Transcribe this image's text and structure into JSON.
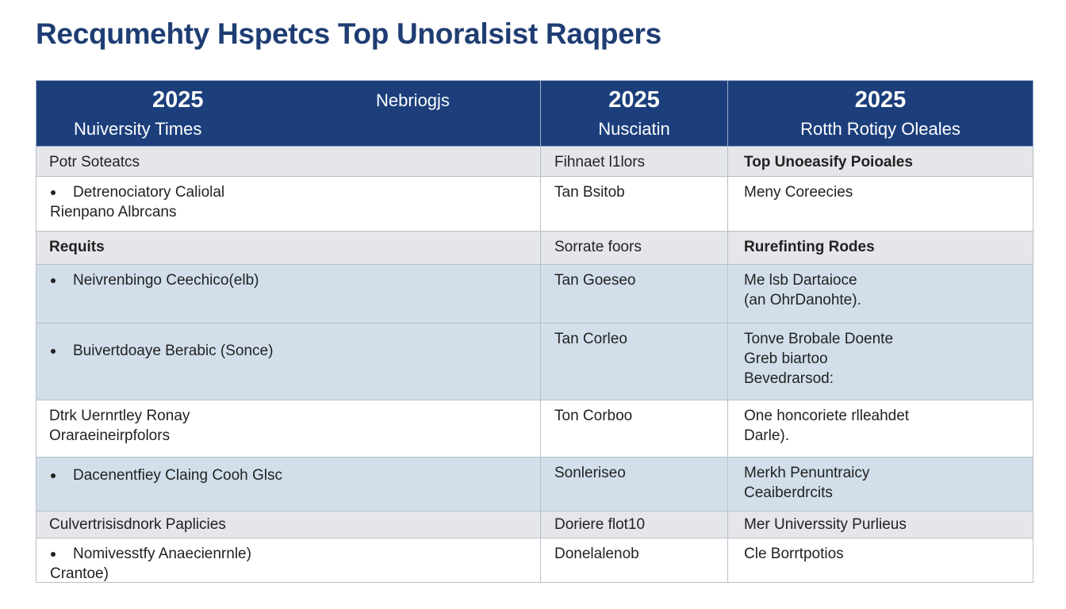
{
  "title": "Recqumehty Hspetcs Top Unoralsist Raqpers",
  "header": {
    "cells": [
      [
        "2025",
        "Nuiversity Times",
        "Nebriogjs"
      ],
      [
        "2025",
        "Nusciatin"
      ],
      [
        "2025",
        "Rotth Rotiqy Oleales"
      ]
    ]
  },
  "table": {
    "rows": [
      [
        [
          "Potr Soteatcs"
        ],
        [
          "Fihnaet l1lors"
        ],
        [
          "Top Unoeasify Poioales"
        ]
      ],
      [
        [
          "Detrenociatory Caliolal",
          "Rienpano Albrcans"
        ],
        [
          "Tan  Bsitob"
        ],
        [
          "Meny Coreecies"
        ]
      ],
      [
        [
          "Requits"
        ],
        [
          "Sorrate foors"
        ],
        [
          "Rurefinting Rodes"
        ]
      ],
      [
        [
          "Neivrenbingo Ceechico(elb)"
        ],
        [
          "Tan Goeseo"
        ],
        [
          "Me lsb Dartaioce",
          "(an OhrDanohte)."
        ]
      ],
      [
        [
          "Buivertdoaye Berabic (Sonce)"
        ],
        [
          "Tan Corleo"
        ],
        [
          "Tonve Brobale Doente",
          "Greb biartoo",
          "Bevedrarsod:"
        ]
      ],
      [
        [
          "Dtrk Uernrtley Ronay",
          "Oraraeineirpfolors"
        ],
        [
          "Ton Corboo"
        ],
        [
          "One honcoriete rlleahdet",
          "Darle)."
        ]
      ],
      [
        [
          "Dacenentfiey Claing Cooh Glsc"
        ],
        [
          "Sonleriseo"
        ],
        [
          "Merkh Penuntraicy",
          "Ceaiberdrcits"
        ]
      ],
      [
        [
          "Culvertrisisdnork Paplicies"
        ],
        [
          "Doriere flot10"
        ],
        [
          "Mer Universsity Purlieus"
        ]
      ],
      [
        [
          "Nomivesstfy Anaecienrnle)",
          "Crantoe)"
        ],
        [
          "Donelalenob"
        ],
        [
          "Cle Borrtpotios"
        ]
      ]
    ]
  }
}
